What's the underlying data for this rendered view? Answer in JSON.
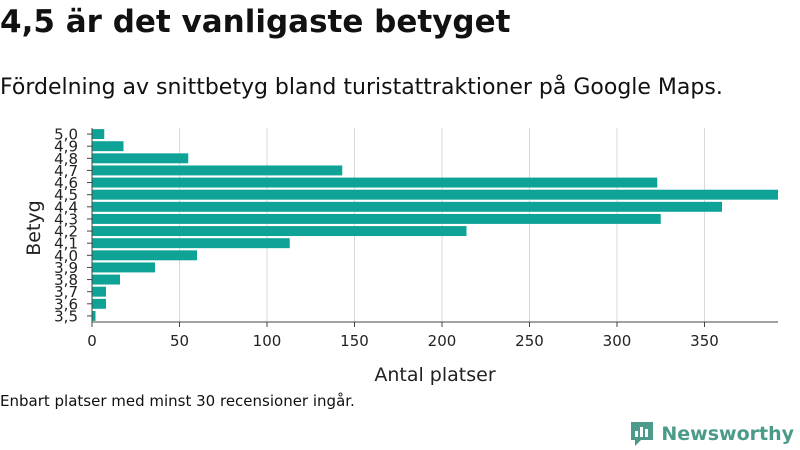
{
  "header": {
    "title": "4,5 är det vanligaste betyget",
    "subtitle": "Fördelning av snittbetyg bland turistattraktioner på Google Maps."
  },
  "footer": {
    "note": "Enbart platser med minst 30 recensioner ingår.",
    "brand": "Newsworthy",
    "brand_icon": "newsworthy-logo-icon"
  },
  "colors": {
    "bar": "#0fa397",
    "grid": "#d9d9d9",
    "axis": "#444444",
    "brand": "#4c9a8a"
  },
  "chart_data": {
    "type": "bar",
    "orientation": "horizontal",
    "xlabel": "Antal platser",
    "ylabel": "Betyg",
    "categories": [
      "5.0",
      "4.9",
      "4.8",
      "4.7",
      "4.6",
      "4.5",
      "4.4",
      "4.3",
      "4.2",
      "4.1",
      "4.0",
      "3.9",
      "3.8",
      "3.7",
      "3.6",
      "3.5"
    ],
    "values": [
      7,
      18,
      55,
      143,
      323,
      392,
      360,
      325,
      214,
      113,
      60,
      36,
      16,
      8,
      8,
      2
    ],
    "xlim": [
      0,
      392
    ],
    "xticks": [
      0,
      50,
      100,
      150,
      200,
      250,
      300,
      350
    ],
    "grid": true
  }
}
